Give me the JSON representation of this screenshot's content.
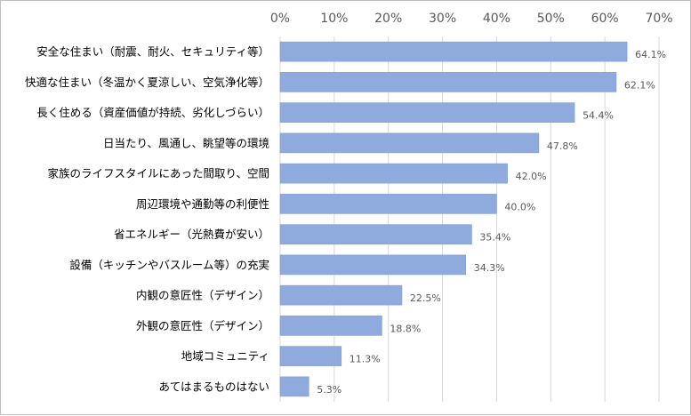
{
  "chart_data": {
    "type": "bar",
    "orientation": "horizontal",
    "categories": [
      "安全な住まい（耐震、耐火、セキュリティ等）",
      "快適な住まい（冬温かく夏涼しい、空気浄化等）",
      "長く住める（資産価値が持続、劣化しづらい）",
      "日当たり、風通し、眺望等の環境",
      "家族のライフスタイルにあった間取り、空間",
      "周辺環境や通勤等の利便性",
      "省エネルギー（光熱費が安い）",
      "設備（キッチンやバスルーム等）の充実",
      "内観の意匠性（デザイン）",
      "外観の意匠性（デザイン）",
      "地域コミュニティ",
      "あてはまるものはない"
    ],
    "values": [
      64.1,
      62.1,
      54.4,
      47.8,
      42.0,
      40.0,
      35.4,
      34.3,
      22.5,
      18.8,
      11.3,
      5.3
    ],
    "value_labels": [
      "64.1%",
      "62.1%",
      "54.4%",
      "47.8%",
      "42.0%",
      "40.0%",
      "35.4%",
      "34.3%",
      "22.5%",
      "18.8%",
      "11.3%",
      "5.3%"
    ],
    "xlim": [
      0,
      70
    ],
    "xticks": [
      "0%",
      "10%",
      "20%",
      "30%",
      "40%",
      "50%",
      "60%",
      "70%"
    ],
    "axis_position": "top",
    "grid": true,
    "legend": "none",
    "bar_color": "#8faadc",
    "bar_border_color": "#7f9fd6",
    "grid_color": "#d9d9d9"
  }
}
